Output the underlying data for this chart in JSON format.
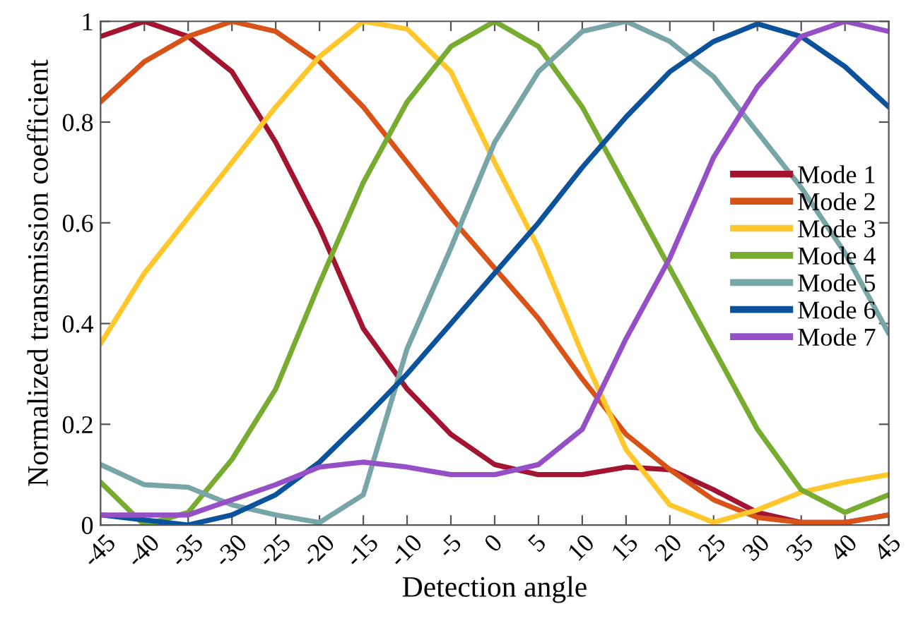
{
  "chart_data": {
    "type": "line",
    "xlabel": "Detection angle",
    "ylabel": "Normalized transmission coefficient",
    "x": [
      -45,
      -40,
      -35,
      -30,
      -25,
      -20,
      -15,
      -10,
      -5,
      0,
      5,
      10,
      15,
      20,
      25,
      30,
      35,
      40,
      45
    ],
    "series": [
      {
        "name": "Mode 1",
        "color": "#a2142f",
        "values": [
          0.97,
          1.0,
          0.97,
          0.9,
          0.76,
          0.59,
          0.39,
          0.27,
          0.18,
          0.12,
          0.1,
          0.1,
          0.115,
          0.11,
          0.07,
          0.025,
          0.005,
          0.005,
          0.02
        ]
      },
      {
        "name": "Mode 2",
        "color": "#d95319",
        "values": [
          0.84,
          0.92,
          0.97,
          1.0,
          0.98,
          0.92,
          0.83,
          0.72,
          0.61,
          0.51,
          0.41,
          0.29,
          0.18,
          0.11,
          0.05,
          0.015,
          0.005,
          0.005,
          0.02
        ]
      },
      {
        "name": "Mode 3",
        "color": "#ffc72c",
        "values": [
          0.36,
          0.5,
          0.61,
          0.72,
          0.83,
          0.93,
          1.0,
          0.985,
          0.9,
          0.72,
          0.55,
          0.34,
          0.15,
          0.04,
          0.005,
          0.03,
          0.065,
          0.085,
          0.1
        ]
      },
      {
        "name": "Mode 4",
        "color": "#77ac30",
        "values": [
          0.085,
          0.0,
          0.025,
          0.13,
          0.27,
          0.48,
          0.68,
          0.84,
          0.95,
          1.0,
          0.95,
          0.83,
          0.67,
          0.51,
          0.35,
          0.19,
          0.07,
          0.025,
          0.06
        ]
      },
      {
        "name": "Mode 5",
        "color": "#77a5a8",
        "values": [
          0.12,
          0.08,
          0.075,
          0.04,
          0.02,
          0.005,
          0.06,
          0.35,
          0.55,
          0.76,
          0.9,
          0.98,
          1.0,
          0.96,
          0.89,
          0.78,
          0.67,
          0.54,
          0.38
        ]
      },
      {
        "name": "Mode 6",
        "color": "#0b529c",
        "values": [
          0.02,
          0.01,
          0.0,
          0.02,
          0.06,
          0.125,
          0.21,
          0.3,
          0.4,
          0.5,
          0.6,
          0.71,
          0.81,
          0.9,
          0.96,
          0.995,
          0.97,
          0.91,
          0.83
        ]
      },
      {
        "name": "Mode 7",
        "color": "#9550c8",
        "values": [
          0.02,
          0.02,
          0.02,
          0.05,
          0.08,
          0.115,
          0.125,
          0.115,
          0.1,
          0.1,
          0.12,
          0.19,
          0.37,
          0.53,
          0.73,
          0.87,
          0.97,
          1.0,
          0.98
        ]
      }
    ],
    "xlim": [
      -45,
      45
    ],
    "xticks": [
      -45,
      -40,
      -35,
      -30,
      -25,
      -20,
      -15,
      -10,
      -5,
      0,
      5,
      10,
      15,
      20,
      25,
      30,
      35,
      40,
      45
    ],
    "ylim": [
      0,
      1
    ],
    "yticks": [
      0,
      0.2,
      0.4,
      0.6,
      0.8,
      1
    ],
    "legend": "right",
    "grid": false
  }
}
